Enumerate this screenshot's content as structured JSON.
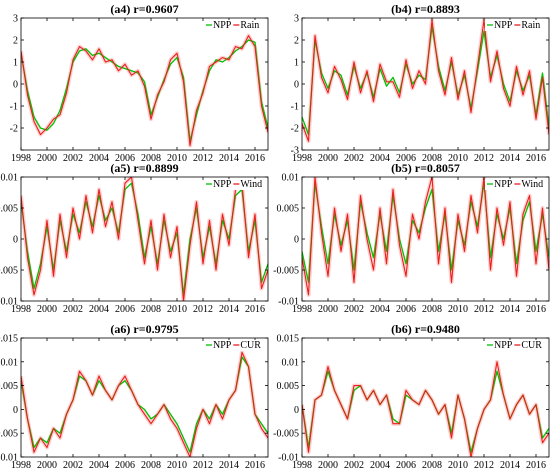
{
  "colors": {
    "npp": "#00c000",
    "factor": "#e8201c",
    "band": "#ffd0d0"
  },
  "x_ticks": [
    1998,
    2000,
    2002,
    2004,
    2006,
    2008,
    2010,
    2012,
    2014,
    2016
  ],
  "chart_data": [
    {
      "type": "line",
      "title": "(a4) r=0.9607",
      "legend": [
        "NPP",
        "Rain"
      ],
      "legend_position": "top-right",
      "xlim": [
        1998,
        2017
      ],
      "ylim": [
        -3,
        3
      ],
      "y_ticks": [
        -3,
        -2,
        -1,
        0,
        1,
        2,
        3
      ],
      "y_tick_labels": [
        "",
        "-2",
        "-1",
        "0",
        "1",
        "2",
        "3"
      ],
      "x": [
        1998.0,
        1998.5,
        1999.0,
        1999.5,
        2000.0,
        2000.5,
        2001.0,
        2001.5,
        2002.0,
        2002.5,
        2003.0,
        2003.5,
        2004.0,
        2004.5,
        2005.0,
        2005.5,
        2006.0,
        2006.5,
        2007.0,
        2007.5,
        2008.0,
        2008.5,
        2009.0,
        2009.5,
        2010.0,
        2010.5,
        2011.0,
        2011.5,
        2012.0,
        2012.5,
        2013.0,
        2013.5,
        2014.0,
        2014.5,
        2015.0,
        2015.5,
        2016.0,
        2016.5,
        2017.0
      ],
      "series": [
        {
          "name": "NPP",
          "values": [
            1.4,
            -0.3,
            -1.5,
            -2.0,
            -2.1,
            -1.8,
            -1.2,
            -0.2,
            1.0,
            1.5,
            1.6,
            1.3,
            1.4,
            1.2,
            1.0,
            0.8,
            0.7,
            0.6,
            0.5,
            0.1,
            -1.4,
            -0.6,
            0.2,
            0.9,
            1.2,
            0.3,
            -2.6,
            -1.4,
            -0.3,
            0.6,
            1.1,
            1.0,
            1.2,
            1.5,
            1.7,
            2.0,
            1.9,
            -0.8,
            -2.0
          ]
        },
        {
          "name": "Rain",
          "values": [
            1.5,
            -0.5,
            -1.7,
            -2.3,
            -2.0,
            -1.6,
            -1.4,
            -0.4,
            1.1,
            1.7,
            1.5,
            1.1,
            1.6,
            1.0,
            1.1,
            0.6,
            0.9,
            0.4,
            0.6,
            -0.1,
            -1.6,
            -0.5,
            0.1,
            1.1,
            1.4,
            0.1,
            -2.8,
            -1.2,
            -0.4,
            0.8,
            1.0,
            1.2,
            1.1,
            1.7,
            1.6,
            2.2,
            1.7,
            -1.0,
            -2.2
          ]
        }
      ]
    },
    {
      "type": "line",
      "title": "(b4) r=0.8893",
      "legend": [
        "NPP",
        "Rain"
      ],
      "legend_position": "top-right",
      "xlim": [
        1998,
        2017
      ],
      "ylim": [
        -3,
        3
      ],
      "y_ticks": [
        -3,
        -2,
        -1,
        0,
        1,
        2,
        3
      ],
      "y_tick_labels": [
        "-3",
        "-2",
        "-1",
        "0",
        "1",
        "2",
        "3"
      ],
      "x": [
        1998.0,
        1998.5,
        1999.0,
        1999.5,
        2000.0,
        2000.5,
        2001.0,
        2001.5,
        2002.0,
        2002.5,
        2003.0,
        2003.5,
        2004.0,
        2004.5,
        2005.0,
        2005.5,
        2006.0,
        2006.5,
        2007.0,
        2007.5,
        2008.0,
        2008.5,
        2009.0,
        2009.5,
        2010.0,
        2010.5,
        2011.0,
        2011.5,
        2012.0,
        2012.5,
        2013.0,
        2013.5,
        2014.0,
        2014.5,
        2015.0,
        2015.5,
        2016.0,
        2016.5,
        2017.0
      ],
      "series": [
        {
          "name": "NPP",
          "values": [
            -1.5,
            -2.3,
            2.0,
            0.5,
            -0.2,
            0.6,
            0.4,
            -0.5,
            0.8,
            -0.2,
            0.5,
            -0.6,
            0.7,
            -0.1,
            0.3,
            -0.4,
            0.9,
            0.0,
            0.4,
            0.2,
            2.6,
            0.8,
            -0.3,
            1.0,
            -0.5,
            0.4,
            -1.1,
            0.6,
            2.4,
            0.3,
            1.3,
            0.0,
            -0.8,
            0.6,
            -0.3,
            0.4,
            -1.4,
            0.5,
            -2.0
          ]
        },
        {
          "name": "Rain",
          "values": [
            -1.8,
            -2.6,
            2.2,
            0.3,
            -0.4,
            0.8,
            0.2,
            -0.7,
            1.0,
            -0.4,
            0.6,
            -0.8,
            0.9,
            0.1,
            0.1,
            -0.6,
            1.1,
            -0.2,
            0.6,
            0.0,
            2.9,
            0.6,
            -0.5,
            1.2,
            -0.7,
            0.6,
            -1.3,
            0.8,
            2.9,
            0.1,
            1.5,
            -0.2,
            -1.0,
            0.8,
            -0.5,
            0.6,
            -1.6,
            0.3,
            -2.3
          ]
        }
      ]
    },
    {
      "type": "line",
      "title": "(a5) r=0.8899",
      "legend": [
        "NPP",
        "Wind"
      ],
      "legend_position": "top-right",
      "xlim": [
        1998,
        2017
      ],
      "ylim": [
        -0.01,
        0.01
      ],
      "y_ticks": [
        -0.01,
        -0.005,
        0,
        0.005,
        0.01
      ],
      "y_tick_labels": [
        "-0.01",
        "-0.005",
        "0",
        "0.005",
        "0.01"
      ],
      "x": [
        1998.0,
        1998.5,
        1999.0,
        1999.5,
        2000.0,
        2000.5,
        2001.0,
        2001.5,
        2002.0,
        2002.5,
        2003.0,
        2003.5,
        2004.0,
        2004.5,
        2005.0,
        2005.5,
        2006.0,
        2006.5,
        2007.0,
        2007.5,
        2008.0,
        2008.5,
        2009.0,
        2009.5,
        2010.0,
        2010.5,
        2011.0,
        2011.5,
        2012.0,
        2012.5,
        2013.0,
        2013.5,
        2014.0,
        2014.5,
        2015.0,
        2015.5,
        2016.0,
        2016.5,
        2017.0
      ],
      "series": [
        {
          "name": "NPP",
          "values": [
            0.006,
            -0.002,
            -0.008,
            -0.004,
            0.002,
            -0.005,
            0.003,
            -0.002,
            0.004,
            0.001,
            0.006,
            0.002,
            0.007,
            0.003,
            0.005,
            0.001,
            0.008,
            0.009,
            0.004,
            -0.003,
            0.002,
            -0.004,
            0.003,
            -0.002,
            0.001,
            -0.009,
            0.0,
            0.005,
            -0.003,
            0.002,
            -0.004,
            0.003,
            0.0,
            0.007,
            0.008,
            -0.002,
            0.003,
            -0.007,
            -0.004
          ]
        },
        {
          "name": "Wind",
          "values": [
            0.007,
            -0.003,
            -0.009,
            -0.005,
            0.003,
            -0.006,
            0.004,
            -0.003,
            0.005,
            0.0,
            0.007,
            0.001,
            0.008,
            0.002,
            0.006,
            0.0,
            0.009,
            0.01,
            0.003,
            -0.004,
            0.003,
            -0.005,
            0.004,
            -0.003,
            0.002,
            -0.01,
            -0.001,
            0.006,
            -0.004,
            0.003,
            -0.005,
            0.004,
            -0.001,
            0.008,
            0.009,
            -0.003,
            0.004,
            -0.008,
            -0.005
          ]
        }
      ]
    },
    {
      "type": "line",
      "title": "(b5) r=0.8057",
      "legend": [
        "NPP",
        "Wind"
      ],
      "legend_position": "top-right",
      "xlim": [
        1998,
        2017
      ],
      "ylim": [
        -0.01,
        0.01
      ],
      "y_ticks": [
        -0.01,
        -0.005,
        0,
        0.005,
        0.01
      ],
      "y_tick_labels": [
        "-0.01",
        "-0.005",
        "0",
        "0.005",
        "0.01"
      ],
      "x": [
        1998.0,
        1998.5,
        1999.0,
        1999.5,
        2000.0,
        2000.5,
        2001.0,
        2001.5,
        2002.0,
        2002.5,
        2003.0,
        2003.5,
        2004.0,
        2004.5,
        2005.0,
        2005.5,
        2006.0,
        2006.5,
        2007.0,
        2007.5,
        2008.0,
        2008.5,
        2009.0,
        2009.5,
        2010.0,
        2010.5,
        2011.0,
        2011.5,
        2012.0,
        2012.5,
        2013.0,
        2013.5,
        2014.0,
        2014.5,
        2015.0,
        2015.5,
        2016.0,
        2016.5,
        2017.0
      ],
      "series": [
        {
          "name": "NPP",
          "values": [
            -0.002,
            -0.007,
            0.009,
            0.002,
            -0.004,
            0.004,
            -0.001,
            0.003,
            -0.005,
            0.006,
            0.001,
            -0.003,
            0.004,
            -0.002,
            0.007,
            0.0,
            -0.004,
            0.003,
            0.001,
            0.005,
            0.008,
            -0.002,
            0.004,
            -0.005,
            0.003,
            -0.001,
            0.006,
            0.002,
            0.009,
            -0.003,
            0.004,
            0.0,
            0.005,
            -0.004,
            0.003,
            0.006,
            -0.002,
            0.004,
            -0.003
          ]
        },
        {
          "name": "Wind",
          "values": [
            -0.003,
            -0.009,
            0.01,
            0.001,
            -0.006,
            0.005,
            -0.002,
            0.004,
            -0.007,
            0.007,
            0.0,
            -0.005,
            0.005,
            -0.004,
            0.008,
            -0.001,
            -0.006,
            0.004,
            0.0,
            0.006,
            0.01,
            -0.004,
            0.005,
            -0.007,
            0.004,
            -0.002,
            0.007,
            0.001,
            0.01,
            -0.005,
            0.005,
            -0.001,
            0.006,
            -0.006,
            0.004,
            0.007,
            -0.004,
            0.005,
            -0.005
          ]
        }
      ]
    },
    {
      "type": "line",
      "title": "(a6) r=0.9795",
      "legend": [
        "NPP",
        "CUR"
      ],
      "legend_position": "top-right",
      "xlim": [
        1998,
        2017
      ],
      "ylim": [
        -0.01,
        0.015
      ],
      "y_ticks": [
        -0.01,
        -0.005,
        0,
        0.005,
        0.01,
        0.015
      ],
      "y_tick_labels": [
        "-0.01",
        "-0.005",
        "0",
        "0.005",
        "0.01",
        "0.015"
      ],
      "x": [
        1998.0,
        1998.5,
        1999.0,
        1999.5,
        2000.0,
        2000.5,
        2001.0,
        2001.5,
        2002.0,
        2002.5,
        2003.0,
        2003.5,
        2004.0,
        2004.5,
        2005.0,
        2005.5,
        2006.0,
        2006.5,
        2007.0,
        2007.5,
        2008.0,
        2008.5,
        2009.0,
        2009.5,
        2010.0,
        2010.5,
        2011.0,
        2011.5,
        2012.0,
        2012.5,
        2013.0,
        2013.5,
        2014.0,
        2014.5,
        2015.0,
        2015.5,
        2016.0,
        2016.5,
        2017.0
      ],
      "series": [
        {
          "name": "NPP",
          "values": [
            0.006,
            -0.002,
            -0.008,
            -0.006,
            -0.007,
            -0.004,
            -0.005,
            -0.001,
            0.002,
            0.007,
            0.006,
            0.003,
            0.006,
            0.004,
            0.002,
            0.005,
            0.006,
            0.004,
            0.001,
            0.0,
            -0.002,
            -0.001,
            0.001,
            -0.001,
            -0.003,
            -0.006,
            -0.009,
            -0.003,
            0.0,
            -0.002,
            0.001,
            -0.001,
            0.002,
            0.004,
            0.011,
            0.009,
            -0.001,
            -0.003,
            -0.005
          ]
        },
        {
          "name": "CUR",
          "values": [
            0.007,
            -0.002,
            -0.009,
            -0.006,
            -0.008,
            -0.004,
            -0.006,
            -0.001,
            0.002,
            0.008,
            0.006,
            0.003,
            0.007,
            0.004,
            0.002,
            0.005,
            0.007,
            0.004,
            0.001,
            -0.001,
            -0.003,
            -0.001,
            0.001,
            -0.002,
            -0.004,
            -0.007,
            -0.01,
            -0.004,
            0.0,
            -0.003,
            0.001,
            -0.002,
            0.002,
            0.004,
            0.012,
            0.009,
            -0.001,
            -0.004,
            -0.006
          ]
        }
      ]
    },
    {
      "type": "line",
      "title": "(b6) r=0.9480",
      "legend": [
        "NPP",
        "CUR"
      ],
      "legend_position": "top-right",
      "xlim": [
        1998,
        2017
      ],
      "ylim": [
        -0.01,
        0.015
      ],
      "y_ticks": [
        -0.01,
        -0.005,
        0,
        0.005,
        0.01,
        0.015
      ],
      "y_tick_labels": [
        "-0.01",
        "-0.005",
        "0",
        "0.005",
        "0.01",
        "0.015"
      ],
      "x": [
        1998.0,
        1998.5,
        1999.0,
        1999.5,
        2000.0,
        2000.5,
        2001.0,
        2001.5,
        2002.0,
        2002.5,
        2003.0,
        2003.5,
        2004.0,
        2004.5,
        2005.0,
        2005.5,
        2006.0,
        2006.5,
        2007.0,
        2007.5,
        2008.0,
        2008.5,
        2009.0,
        2009.5,
        2010.0,
        2010.5,
        2011.0,
        2011.5,
        2012.0,
        2012.5,
        2013.0,
        2013.5,
        2014.0,
        2014.5,
        2015.0,
        2015.5,
        2016.0,
        2016.5,
        2017.0
      ],
      "series": [
        {
          "name": "NPP",
          "values": [
            0.001,
            -0.008,
            0.002,
            0.003,
            0.008,
            0.004,
            0.001,
            -0.002,
            0.004,
            0.005,
            0.002,
            0.004,
            0.001,
            0.003,
            -0.002,
            -0.003,
            0.003,
            0.002,
            0.001,
            0.004,
            0.002,
            -0.001,
            0.001,
            -0.005,
            0.003,
            -0.002,
            -0.009,
            -0.004,
            0.0,
            0.002,
            0.008,
            0.003,
            -0.002,
            0.001,
            0.003,
            -0.001,
            0.001,
            -0.006,
            -0.004
          ]
        },
        {
          "name": "CUR",
          "values": [
            0.001,
            -0.009,
            0.002,
            0.003,
            0.009,
            0.004,
            0.001,
            -0.002,
            0.005,
            0.005,
            0.002,
            0.004,
            0.001,
            0.003,
            -0.003,
            -0.003,
            0.004,
            0.002,
            0.001,
            0.004,
            0.002,
            -0.001,
            0.001,
            -0.006,
            0.003,
            -0.002,
            -0.01,
            -0.004,
            0.0,
            0.002,
            0.01,
            0.003,
            -0.002,
            0.001,
            0.003,
            -0.001,
            0.001,
            -0.007,
            -0.005
          ]
        }
      ]
    }
  ]
}
